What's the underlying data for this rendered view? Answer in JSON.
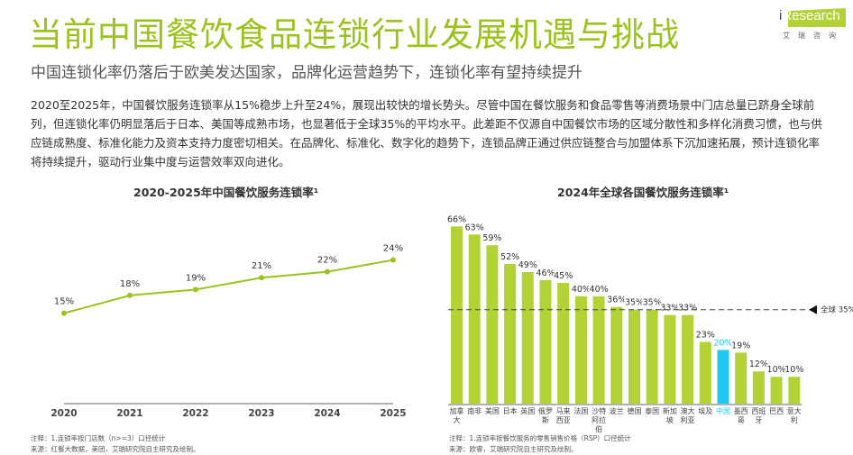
{
  "header": {
    "title": "当前中国餐饮食品连锁行业发展机遇与挑战",
    "subtitle": "中国连锁化率仍落后于欧美发达国家，品牌化运营趋势下，连锁化率有望持续提升",
    "logo_text": "iResearch",
    "logo_cn": "艾瑞咨询"
  },
  "paragraph": "2020至2025年，中国餐饮服务连锁率从15%稳步上升至24%，展现出较快的增长势头。尽管中国在餐饮服务和食品零售等消费场景中门店总量已跻身全球前列，但连锁化率仍明显落后于日本、美国等成熟市场，也显著低于全球35%的平均水平。此差距不仅源自中国餐饮市场的区域分散性和多样化消费习惯，也与供应链成熟度、标准化能力及资本支持力度密切相关。在品牌化、标准化、数字化的趋势下，连锁品牌正通过供应链整合与加盟体系下沉加速拓展，预计连锁化率将持续提升，驱动行业集中度与运营效率双向进化。",
  "chart_data": [
    {
      "type": "line",
      "title": "2020-2025年中国餐饮服务连锁率¹",
      "categories": [
        "2020",
        "2021",
        "2022",
        "2023",
        "2024",
        "2025"
      ],
      "values": [
        15,
        18,
        19,
        21,
        22,
        24
      ],
      "labels": [
        "15%",
        "18%",
        "19%",
        "21%",
        "22%",
        "24%"
      ],
      "color": "#9cc31d",
      "grid": false,
      "note": "注释：1.连锁率按门店数（n>=3）口径统计",
      "source": "来源：红餐大数据，美团，艾瑞研究院自主研究及绘制。"
    },
    {
      "type": "bar",
      "title": "2024年全球各国餐饮服务连锁率¹",
      "categories": [
        "加拿大",
        "南非",
        "美国",
        "日本",
        "英国",
        "俄罗斯",
        "马来西亚",
        "法国",
        "沙特阿拉伯",
        "波兰",
        "德国",
        "泰国",
        "新加坡",
        "澳大利亚",
        "埃及",
        "中国",
        "墨西哥",
        "西班牙",
        "巴西",
        "意大利"
      ],
      "category_lines": [
        [
          "加拿",
          "大"
        ],
        [
          "南非"
        ],
        [
          "美国"
        ],
        [
          "日本"
        ],
        [
          "英国"
        ],
        [
          "俄罗",
          "斯"
        ],
        [
          "马来",
          "西亚"
        ],
        [
          "法国"
        ],
        [
          "沙特",
          "阿拉",
          "伯"
        ],
        [
          "波兰"
        ],
        [
          "德国"
        ],
        [
          "泰国"
        ],
        [
          "新加",
          "坡"
        ],
        [
          "澳大",
          "利亚"
        ],
        [
          "埃及"
        ],
        [
          "中国"
        ],
        [
          "墨西",
          "哥"
        ],
        [
          "西班",
          "牙"
        ],
        [
          "巴西"
        ],
        [
          "意大",
          "利"
        ]
      ],
      "values": [
        66,
        63,
        59,
        52,
        49,
        46,
        45,
        40,
        40,
        36,
        35,
        35,
        33,
        33,
        23,
        20,
        19,
        12,
        10,
        10
      ],
      "highlight": "中国",
      "bar_color": "#b2d235",
      "highlight_color": "#1ec8f0",
      "reference": {
        "value": 35,
        "label": "全球 35%"
      },
      "grid": false,
      "note": "注释：1.连锁率按餐饮服务的零售销售价格（RSP）口径统计",
      "source": "来源：欧睿，艾瑞研究院自主研究及绘制。"
    }
  ]
}
